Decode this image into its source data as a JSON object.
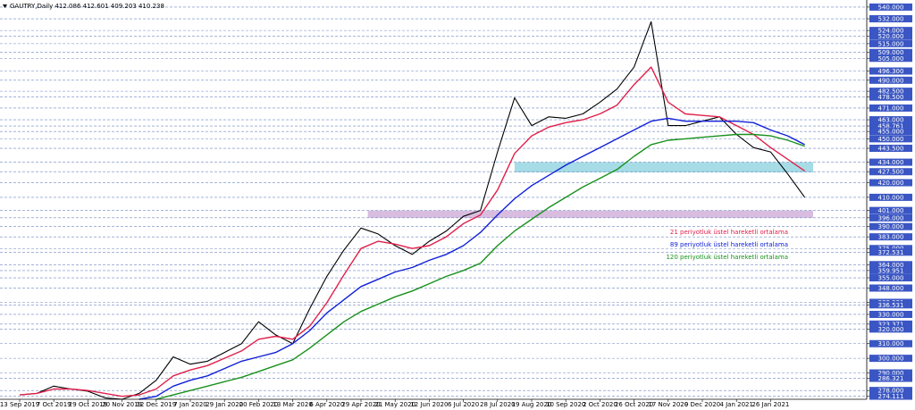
{
  "chart_data": {
    "type": "line",
    "title": "GAUTRY,Daily  412.086 412.601 409.203 410.238",
    "categories": [
      "13 Sep 2019",
      null,
      "7 Oct 2019",
      null,
      "29 Oct 2019",
      null,
      "20 Nov 2019",
      null,
      "12 Dec 2019",
      null,
      "7 Jan 2020",
      null,
      "29 Jan 2020",
      null,
      "20 Feb 2020",
      null,
      "13 Mar 2020",
      null,
      "6 Apr 2020",
      null,
      "29 Apr 2020",
      null,
      "21 May 2020",
      null,
      "12 Jun 2020",
      null,
      "6 Jul 2020",
      null,
      "28 Jul 2020",
      null,
      "19 Aug 2020",
      null,
      "10 Sep 2020",
      null,
      "2 Oct 2020",
      null,
      "26 Oct 2020",
      null,
      "17 Nov 2020",
      null,
      "9 Dec 2020",
      null,
      "4 Jan 2021",
      null,
      "26 Jan 2021",
      null,
      null
    ],
    "series": [
      {
        "name": "GAUTRY",
        "color": "#000000",
        "values": [
          275,
          276,
          281,
          279,
          277.5,
          273,
          272,
          276,
          285,
          301,
          296,
          298,
          304,
          310,
          325,
          316,
          310,
          334,
          356,
          374,
          389,
          385,
          377,
          371,
          380,
          387,
          397,
          401,
          441,
          478,
          459,
          465,
          464,
          467,
          475,
          484,
          499,
          530,
          459,
          459,
          462,
          465,
          453,
          444,
          441,
          426,
          410
        ]
      },
      {
        "name": "21 periyotluk üstel hareketli ortalama",
        "color": "#e0204a",
        "values": [
          275,
          276,
          279,
          279,
          278,
          276,
          274,
          275,
          279,
          288,
          292,
          295,
          300,
          305,
          313,
          315,
          313,
          322,
          338,
          357,
          375,
          380,
          378,
          375,
          377,
          383,
          392,
          398,
          415,
          440,
          452,
          458,
          461,
          463,
          467,
          473,
          487,
          499,
          475,
          467,
          466,
          465,
          459,
          453,
          444,
          436,
          428
        ]
      },
      {
        "name": "89 periyotluk üstel hareketli ortalama",
        "color": "#1020d8",
        "values": [
          null,
          null,
          null,
          null,
          null,
          null,
          null,
          272,
          274,
          281,
          285,
          288,
          293,
          298,
          301,
          304,
          310,
          319,
          331,
          340,
          349,
          354,
          359,
          362,
          367,
          371,
          377,
          386,
          398,
          409,
          418,
          425,
          432,
          438,
          444,
          450,
          456,
          462,
          464,
          462,
          462,
          462,
          462,
          461,
          456,
          452,
          446
        ]
      },
      {
        "name": "120 periyotluk üstel hareketli ortalama",
        "color": "#18901c",
        "values": [
          null,
          null,
          null,
          null,
          null,
          null,
          null,
          null,
          272,
          275,
          278,
          281,
          284,
          287,
          291,
          295,
          299,
          307,
          316,
          325,
          332,
          337,
          342,
          346,
          351,
          356,
          360,
          365,
          377,
          387,
          395,
          403,
          410,
          417,
          423,
          429,
          438,
          446,
          449,
          450,
          451,
          452,
          453,
          453,
          452,
          449,
          445
        ]
      }
    ],
    "zones": [
      {
        "ylim": [
          427,
          434
        ],
        "x_start": 29,
        "color": "#a6dce6"
      },
      {
        "ylim": [
          396,
          401
        ],
        "x_start": 20.4,
        "color": "#d8bde0"
      }
    ],
    "ylim": [
      272,
      543
    ],
    "yticks": [
      {
        "value": 540,
        "label": "540.000"
      },
      {
        "value": 532,
        "label": "532.000"
      },
      {
        "value": 524,
        "label": "524.000"
      },
      {
        "value": 520,
        "label": "520.000"
      },
      {
        "value": 515,
        "label": "515.000"
      },
      {
        "value": 509,
        "label": "509.000"
      },
      {
        "value": 505,
        "label": "505.000"
      },
      {
        "value": 496.3,
        "label": "496.300"
      },
      {
        "value": 490,
        "label": "490.000"
      },
      {
        "value": 482.5,
        "label": "482.500"
      },
      {
        "value": 478.5,
        "label": "478.500"
      },
      {
        "value": 471,
        "label": "471.000"
      },
      {
        "value": 463,
        "label": "463.000"
      },
      {
        "value": 458.761,
        "label": "458.761"
      },
      {
        "value": 455,
        "label": "455.000"
      },
      {
        "value": 450,
        "label": "450.000"
      },
      {
        "value": 443.5,
        "label": "443.500"
      },
      {
        "value": 434,
        "label": "434.000"
      },
      {
        "value": 427.5,
        "label": "427.500"
      },
      {
        "value": 420,
        "label": "420.000"
      },
      {
        "value": 410,
        "label": "410.000"
      },
      {
        "value": 401,
        "label": "401.000"
      },
      {
        "value": 396,
        "label": "396.000"
      },
      {
        "value": 390,
        "label": "390.000"
      },
      {
        "value": 383,
        "label": "383.000"
      },
      {
        "value": 375,
        "label": "375.000"
      },
      {
        "value": 372.531,
        "label": "372.531"
      },
      {
        "value": 364,
        "label": "364.000"
      },
      {
        "value": 359.951,
        "label": "359.951"
      },
      {
        "value": 355,
        "label": "355.000"
      },
      {
        "value": 348,
        "label": "348.000"
      },
      {
        "value": 338.231,
        "label": "338.231"
      },
      {
        "value": 336.531,
        "label": "336.531"
      },
      {
        "value": 330,
        "label": "330.000"
      },
      {
        "value": 323.371,
        "label": "323.371"
      },
      {
        "value": 320,
        "label": "320.000"
      },
      {
        "value": 310,
        "label": "310.000"
      },
      {
        "value": 300,
        "label": "300.000"
      },
      {
        "value": 290,
        "label": "290.000"
      },
      {
        "value": 286.321,
        "label": "286.321"
      },
      {
        "value": 278,
        "label": "278.000"
      },
      {
        "value": 274.111,
        "label": "274.111"
      }
    ],
    "grid": true
  }
}
